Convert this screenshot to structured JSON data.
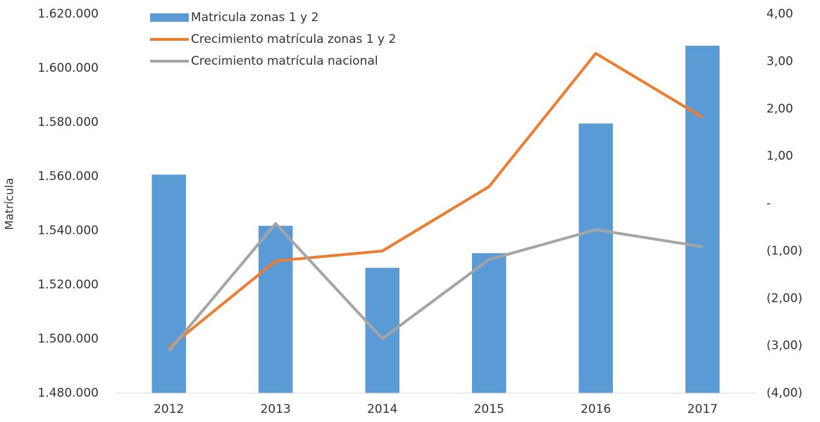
{
  "chart_data": {
    "type": "bar",
    "y_label": "Matrícula",
    "categories": [
      "2012",
      "2013",
      "2014",
      "2015",
      "2016",
      "2017"
    ],
    "series": [
      {
        "name": "Matricula zonas 1 y 2",
        "type": "bar",
        "color": "#5b9bd5",
        "values": [
          1560700,
          1541800,
          1526300,
          1531700,
          1579600,
          1608300
        ]
      },
      {
        "name": "Crecimiento matrícula zonas 1 y 2",
        "type": "line",
        "axis": "y2",
        "color": "#ed7d31",
        "values": [
          -3.04,
          -1.21,
          -1.0,
          0.36,
          3.17,
          1.82
        ]
      },
      {
        "name": "Crecimiento matrícula nacional",
        "type": "line",
        "axis": "y2",
        "color": "#a5a5a5",
        "values": [
          -3.11,
          -0.42,
          -2.85,
          -1.18,
          -0.55,
          -0.91
        ]
      }
    ],
    "ylim": [
      1480000,
      1620000
    ],
    "yticks": [
      {
        "value": 1480000,
        "label": "1.480.000"
      },
      {
        "value": 1500000,
        "label": "1.500.000"
      },
      {
        "value": 1520000,
        "label": "1.520.000"
      },
      {
        "value": 1540000,
        "label": "1.540.000"
      },
      {
        "value": 1560000,
        "label": "1.560.000"
      },
      {
        "value": 1580000,
        "label": "1.580.000"
      },
      {
        "value": 1600000,
        "label": "1.600.000"
      },
      {
        "value": 1620000,
        "label": "1.620.000"
      }
    ],
    "y2lim": [
      -4,
      4
    ],
    "y2ticks": [
      {
        "value": -4,
        "label": "(4,00)"
      },
      {
        "value": -3,
        "label": "(3,00)"
      },
      {
        "value": -2,
        "label": "(2,00)"
      },
      {
        "value": -1,
        "label": "(1,00)"
      },
      {
        "value": 0,
        "label": "-"
      },
      {
        "value": 1,
        "label": "1,00"
      },
      {
        "value": 2,
        "label": "2,00"
      },
      {
        "value": 3,
        "label": "3,00"
      },
      {
        "value": 4,
        "label": "4,00"
      }
    ],
    "legend": "top-left"
  }
}
